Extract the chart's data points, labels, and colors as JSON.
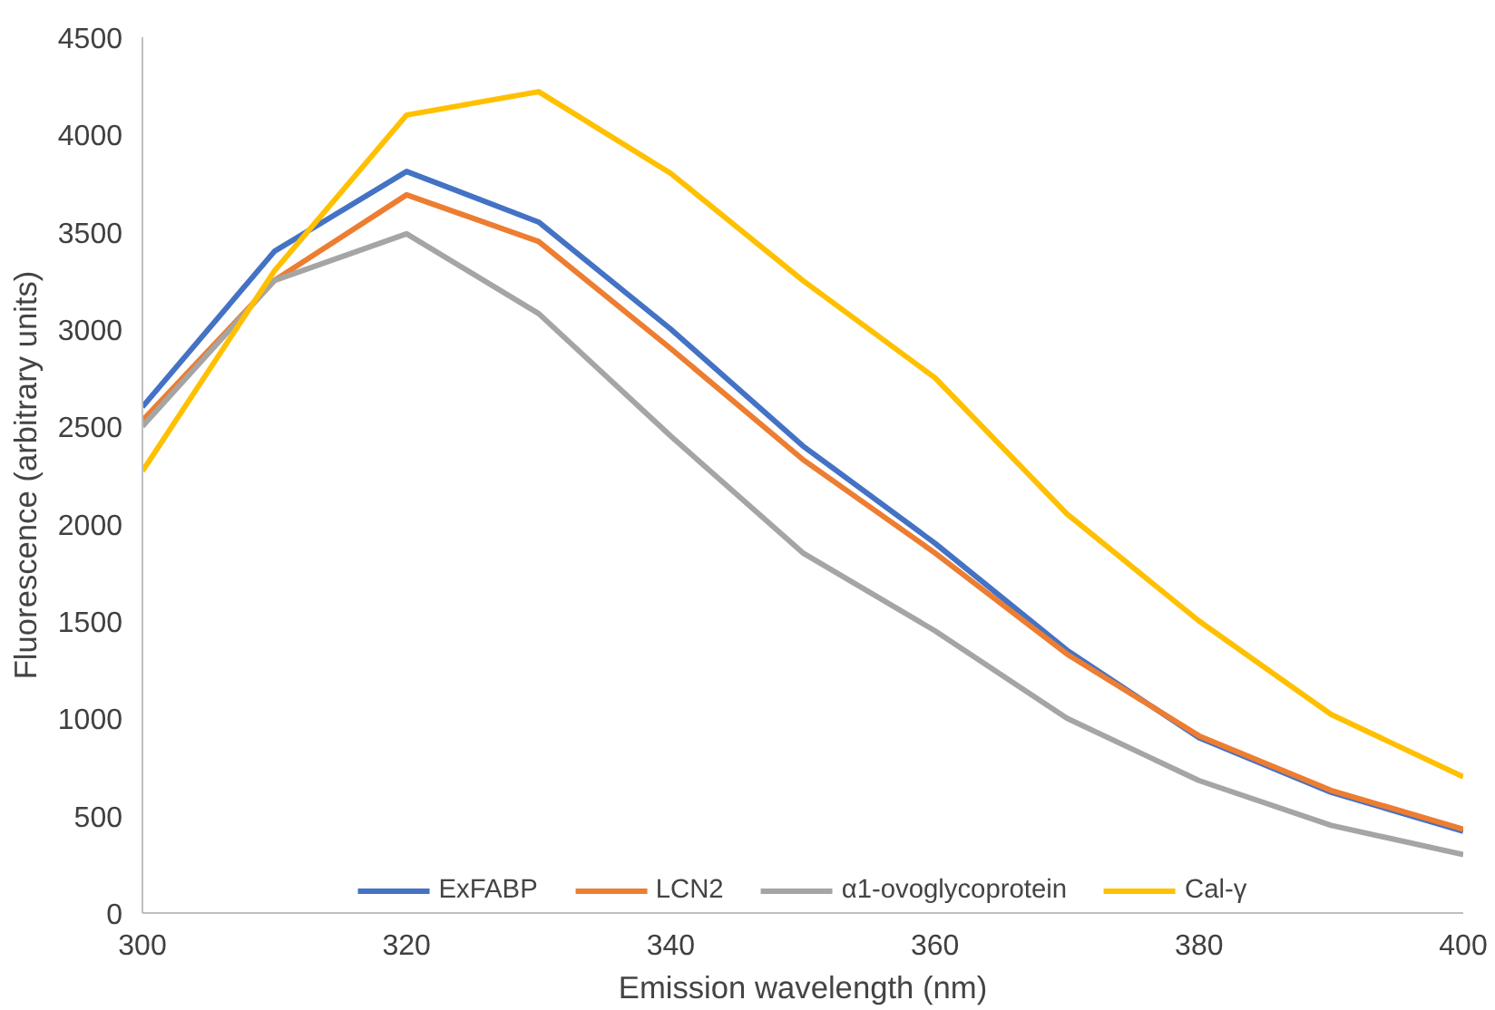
{
  "chart_data": {
    "type": "line",
    "xlabel": "Emission wavelength (nm)",
    "ylabel": "Fluorescence (arbitrary units)",
    "x": [
      300,
      310,
      320,
      330,
      340,
      350,
      360,
      370,
      380,
      390,
      400
    ],
    "series": [
      {
        "name": "ExFABP",
        "color": "#4472c4",
        "values": [
          2600,
          3400,
          3810,
          3550,
          3000,
          2400,
          1900,
          1350,
          900,
          620,
          420
        ]
      },
      {
        "name": "LCN2",
        "color": "#ed7d31",
        "values": [
          2530,
          3250,
          3690,
          3450,
          2900,
          2330,
          1850,
          1330,
          910,
          630,
          430
        ]
      },
      {
        "name": "α1-ovoglycoprotein",
        "color": "#a5a5a5",
        "values": [
          2500,
          3250,
          3490,
          3080,
          2450,
          1850,
          1450,
          1000,
          680,
          450,
          300
        ]
      },
      {
        "name": "Cal-γ",
        "color": "#ffc000",
        "values": [
          2270,
          3300,
          4100,
          4220,
          3800,
          3250,
          2750,
          2050,
          1500,
          1020,
          700
        ]
      }
    ],
    "xlim": [
      300,
      400
    ],
    "xticks": [
      300,
      320,
      340,
      360,
      380,
      400
    ],
    "ylim": [
      0,
      4500
    ],
    "yticks": [
      0,
      500,
      1000,
      1500,
      2000,
      2500,
      3000,
      3500,
      4000,
      4500
    ],
    "grid": false,
    "legend": "bottom",
    "marker": "none",
    "line_style": "solid"
  }
}
